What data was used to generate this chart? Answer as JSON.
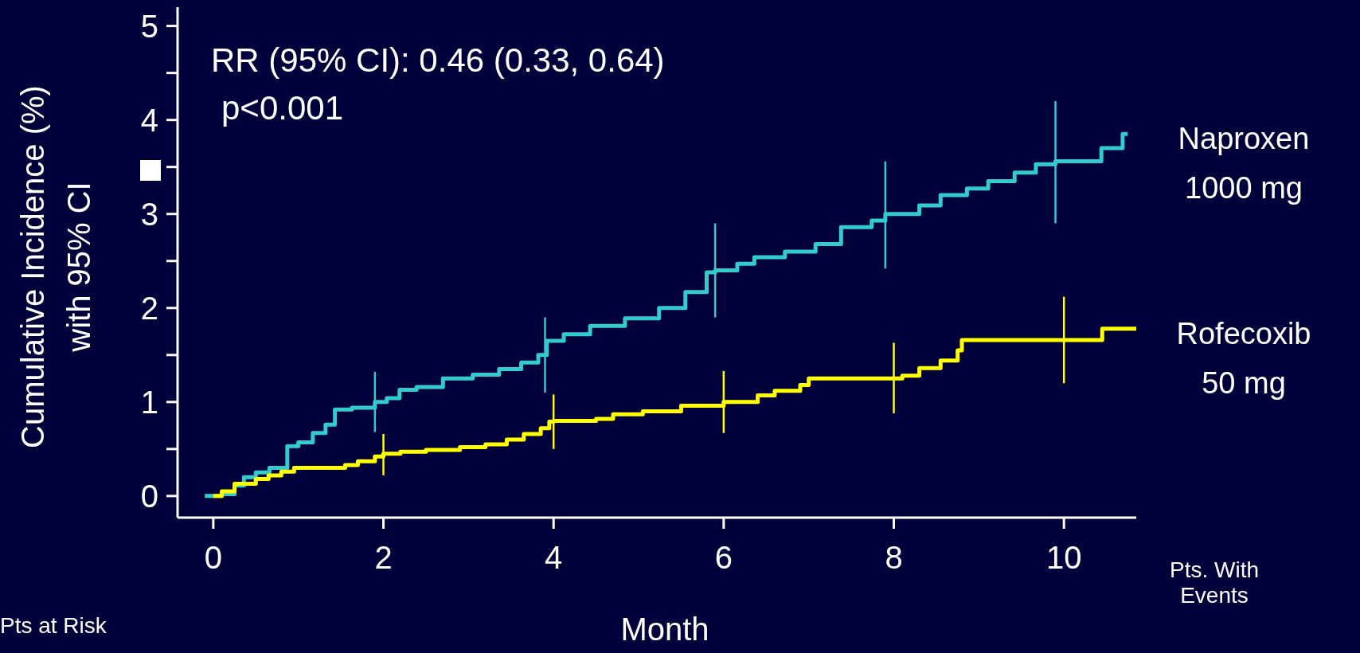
{
  "chart_data": {
    "type": "step",
    "xlabel": "Month",
    "ylabel": "Cumulative Incidence (%) with 95% CI",
    "xlim": [
      -0.42,
      10.85
    ],
    "xticks": [
      0,
      2,
      4,
      6,
      8,
      10
    ],
    "ylim": [
      -0.23,
      5.2
    ],
    "yticks": [
      0,
      {
        "value": 0.5,
        "label": null
      },
      1,
      {
        "value": 1.5,
        "label": null
      },
      2,
      {
        "value": 2.5,
        "label": null
      },
      3,
      {
        "value": 3.5,
        "label": null
      },
      4,
      {
        "value": 4.5,
        "label": null
      },
      5
    ],
    "marker": "none",
    "line_style": "solid",
    "series": [
      {
        "name": "Naproxen 1000 mg",
        "color": "#33cccc",
        "x": [
          -0.1,
          0.1,
          0.25,
          0.36,
          0.5,
          0.66,
          0.87,
          1.0,
          1.17,
          1.32,
          1.43,
          1.63,
          1.9,
          2.04,
          2.19,
          2.39,
          2.7,
          3.05,
          3.36,
          3.62,
          3.82,
          3.9,
          3.92,
          4.12,
          4.43,
          4.84,
          5.24,
          5.55,
          5.8,
          5.9,
          6.16,
          6.36,
          6.72,
          7.08,
          7.38,
          7.74,
          7.9,
          8.3,
          8.55,
          8.86,
          9.11,
          9.42,
          9.67,
          9.9,
          10.44,
          10.69,
          10.75
        ],
        "values": [
          0,
          0.02,
          0.11,
          0.2,
          0.25,
          0.3,
          0.53,
          0.57,
          0.67,
          0.76,
          0.92,
          0.94,
          1.0,
          1.04,
          1.13,
          1.16,
          1.25,
          1.29,
          1.35,
          1.42,
          1.5,
          1.5,
          1.65,
          1.72,
          1.81,
          1.89,
          2.0,
          2.17,
          2.38,
          2.4,
          2.47,
          2.54,
          2.6,
          2.68,
          2.86,
          2.93,
          3.0,
          3.09,
          3.2,
          3.27,
          3.35,
          3.44,
          3.53,
          3.56,
          3.7,
          3.85,
          3.85
        ],
        "errors": [
          null,
          null,
          null,
          null,
          null,
          null,
          null,
          null,
          null,
          null,
          null,
          null,
          [
            0.68,
            1.32
          ],
          null,
          null,
          null,
          null,
          null,
          null,
          null,
          null,
          [
            1.1,
            1.9
          ],
          null,
          null,
          null,
          null,
          null,
          null,
          null,
          [
            1.9,
            2.9
          ],
          null,
          null,
          null,
          null,
          null,
          null,
          [
            2.42,
            3.56
          ],
          null,
          null,
          null,
          null,
          null,
          null,
          [
            2.9,
            4.2
          ],
          null,
          null,
          null
        ]
      },
      {
        "name": "Rofecoxib 50 mg",
        "color": "#ffff00",
        "x": [
          0,
          0.1,
          0.25,
          0.5,
          0.65,
          0.8,
          0.95,
          1.55,
          1.7,
          1.9,
          2,
          2.2,
          2.5,
          2.9,
          3.2,
          3.45,
          3.65,
          3.85,
          3.95,
          4,
          4.5,
          4.7,
          5.05,
          5.5,
          6,
          6.4,
          6.6,
          6.9,
          7.0,
          8,
          8.1,
          8.3,
          8.55,
          8.75,
          8.8,
          10,
          10.45,
          10.85
        ],
        "values": [
          0,
          0.05,
          0.13,
          0.18,
          0.22,
          0.26,
          0.3,
          0.33,
          0.37,
          0.42,
          0.45,
          0.47,
          0.49,
          0.52,
          0.55,
          0.6,
          0.66,
          0.72,
          0.79,
          0.8,
          0.82,
          0.87,
          0.9,
          0.96,
          1.0,
          1.07,
          1.12,
          1.18,
          1.25,
          1.25,
          1.28,
          1.36,
          1.44,
          1.55,
          1.66,
          1.66,
          1.78,
          1.78
        ],
        "errors": [
          null,
          null,
          null,
          null,
          null,
          null,
          null,
          null,
          null,
          null,
          [
            0.22,
            0.66
          ],
          null,
          null,
          null,
          null,
          null,
          null,
          null,
          null,
          [
            0.5,
            1.08
          ],
          null,
          null,
          null,
          null,
          [
            0.67,
            1.33
          ],
          null,
          null,
          null,
          null,
          [
            0.88,
            1.63
          ],
          null,
          null,
          null,
          null,
          null,
          [
            1.2,
            2.12
          ],
          null,
          null
        ]
      }
    ],
    "annotations": [
      "RR (95% CI): 0.46 (0.33, 0.64)",
      "p<0.001",
      "Pts at Risk",
      "Pts. With Events"
    ]
  }
}
